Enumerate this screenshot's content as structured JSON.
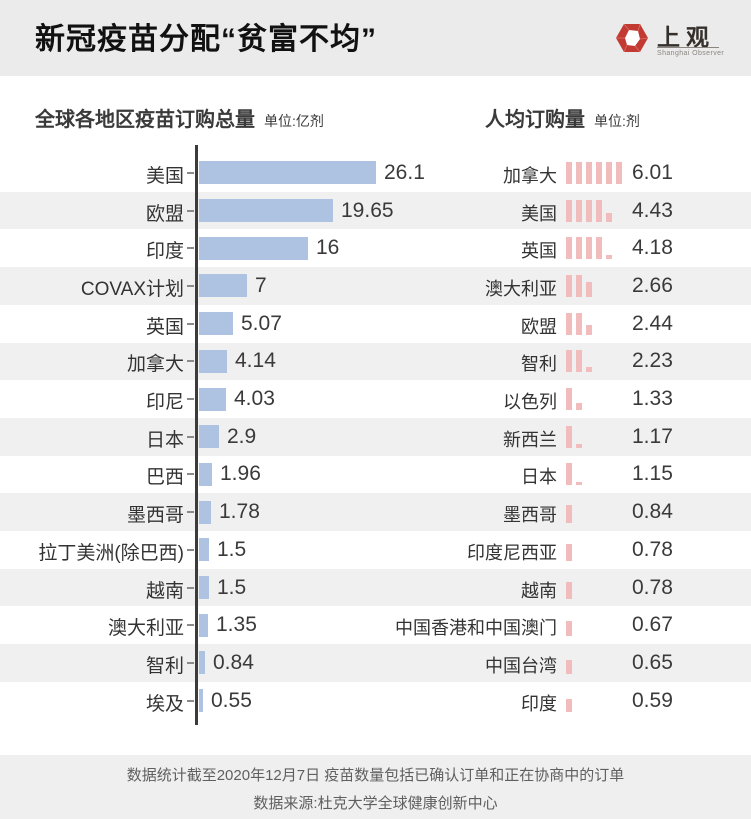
{
  "header": {
    "title": "新冠疫苗分配“贫富不均”",
    "logo": {
      "cn": "上观",
      "en": "Shanghai Observer",
      "accent_color": "#c23a31"
    }
  },
  "chart_data": [
    {
      "type": "bar",
      "orientation": "horizontal",
      "title": "全球各地区疫苗订购总量",
      "unit_label": "单位:亿剂",
      "unit": "亿剂",
      "categories": [
        "美国",
        "欧盟",
        "印度",
        "COVAX计划",
        "英国",
        "加拿大",
        "印尼",
        "日本",
        "巴西",
        "墨西哥",
        "拉丁美洲(除巴西)",
        "越南",
        "澳大利亚",
        "智利",
        "埃及"
      ],
      "values": [
        26.1,
        19.65,
        16,
        7,
        5.07,
        4.14,
        4.03,
        2.9,
        1.96,
        1.78,
        1.5,
        1.5,
        1.35,
        0.84,
        0.55
      ],
      "xlim": [
        0,
        27
      ],
      "bar_color": "#aec3e1",
      "grid": false,
      "value_labels": true
    },
    {
      "type": "bar",
      "subtype": "pictogram-tally",
      "title": "人均订购量",
      "unit_label": "单位:剂",
      "unit": "剂",
      "symbol_value": 1,
      "categories": [
        "加拿大",
        "美国",
        "英国",
        "澳大利亚",
        "欧盟",
        "智利",
        "以色列",
        "新西兰",
        "日本",
        "墨西哥",
        "印度尼西亚",
        "越南",
        "中国香港和中国澳门",
        "中国台湾",
        "印度"
      ],
      "values": [
        6.01,
        4.43,
        4.18,
        2.66,
        2.44,
        2.23,
        1.33,
        1.17,
        1.15,
        0.84,
        0.78,
        0.78,
        0.67,
        0.65,
        0.59
      ],
      "bar_color": "#f0bcbc",
      "grid": false,
      "value_labels": true
    }
  ],
  "layout": {
    "row_start_y": 154,
    "row_height": 37.7,
    "stripe_color": "#f0f0f0",
    "band_color": "#ebebeb"
  },
  "footer": {
    "line1": "数据统计截至2020年12月7日 疫苗数量包括已确认订单和正在协商中的订单",
    "line2": "数据来源:杜克大学全球健康创新中心"
  }
}
